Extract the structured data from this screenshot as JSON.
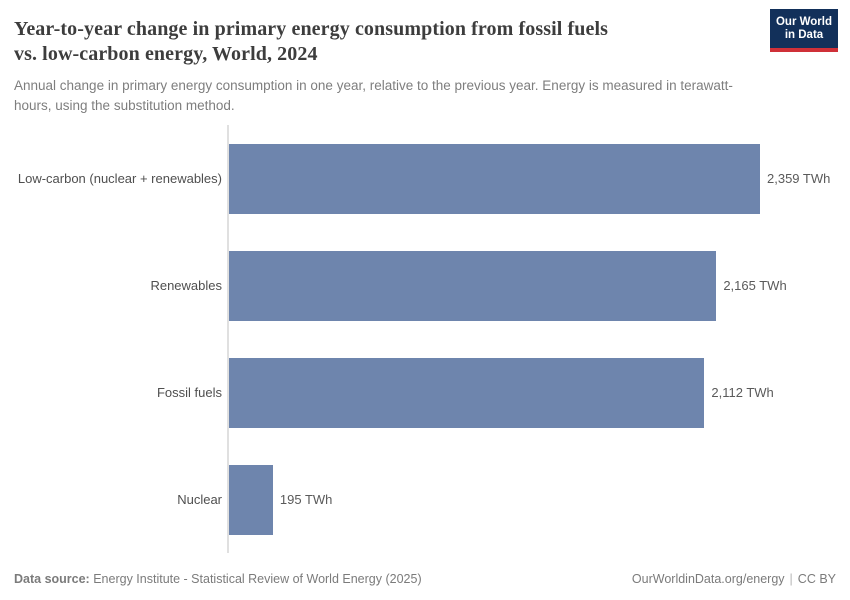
{
  "header": {
    "title": "Year-to-year change in primary energy consumption from fossil fuels vs. low-carbon energy, World, 2024",
    "title_lines": [
      "Year-to-year change in primary energy consumption from fossil fuels",
      "vs. low-carbon energy, World, 2024"
    ],
    "subtitle": "Annual change in primary energy consumption in one year, relative to the previous year. Energy is measured in terawatt-hours, using the substitution method.",
    "logo": {
      "line1": "Our World",
      "line2": "in Data",
      "bg_color": "#12305a",
      "stripe_color": "#cf3038"
    }
  },
  "chart_data": {
    "type": "bar",
    "orientation": "horizontal",
    "categories": [
      "Low-carbon (nuclear + renewables)",
      "Renewables",
      "Fossil fuels",
      "Nuclear"
    ],
    "values": [
      2359,
      2165,
      2112,
      195
    ],
    "value_labels": [
      "2,359 TWh",
      "2,165 TWh",
      "2,112 TWh",
      "195 TWh"
    ],
    "unit": "TWh",
    "xlim": [
      0,
      2359
    ],
    "xmax": 2359,
    "bar_color": "#6e85ad",
    "grid": false,
    "legend": "none",
    "title": "Year-to-year change in primary energy consumption from fossil fuels vs. low-carbon energy, World, 2024"
  },
  "footer": {
    "datasource_label": "Data source:",
    "datasource": "Energy Institute - Statistical Review of World Energy (2025)",
    "url": "OurWorldinData.org/energy",
    "separator": "|",
    "license": "CC BY"
  }
}
